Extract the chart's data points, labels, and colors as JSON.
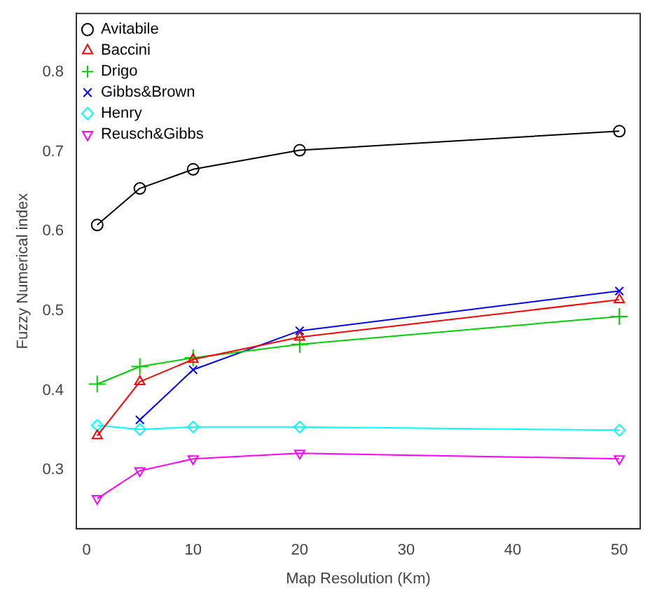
{
  "chart_data": {
    "type": "line",
    "xlabel": "Map Resolution (Km)",
    "ylabel": "Fuzzy Numerical index",
    "x": [
      1,
      5,
      10,
      20,
      50
    ],
    "xlim": [
      -0.96,
      51.96
    ],
    "xticks": [
      0,
      10,
      20,
      30,
      40,
      50
    ],
    "ylim": [
      0.226,
      0.874
    ],
    "yticks": [
      0.3,
      0.4,
      0.5,
      0.6,
      0.7,
      0.8
    ],
    "grid": false,
    "legend": "top left",
    "series": [
      {
        "name": "Avitabile",
        "color": "#000000",
        "marker": "circle",
        "values": [
          0.608,
          0.654,
          0.678,
          0.702,
          0.726
        ]
      },
      {
        "name": "Baccini",
        "color": "#ff0000",
        "marker": "triangle",
        "values": [
          0.343,
          0.411,
          0.439,
          0.467,
          0.514
        ]
      },
      {
        "name": "Drigo",
        "color": "#00cd00",
        "marker": "cross",
        "values": [
          0.408,
          0.43,
          0.441,
          0.458,
          0.493
        ]
      },
      {
        "name": "Gibbs&Brown",
        "color": "#0000ff",
        "marker": "x",
        "values": [
          null,
          0.363,
          0.426,
          0.475,
          0.525
        ]
      },
      {
        "name": "Henry",
        "color": "#00ffff",
        "marker": "diamond",
        "values": [
          0.356,
          0.351,
          0.354,
          0.354,
          0.35
        ]
      },
      {
        "name": "Reusch&Gibbs",
        "color": "#ff00ff",
        "marker": "triangle_down",
        "values": [
          0.264,
          0.299,
          0.314,
          0.321,
          0.314
        ]
      }
    ]
  }
}
